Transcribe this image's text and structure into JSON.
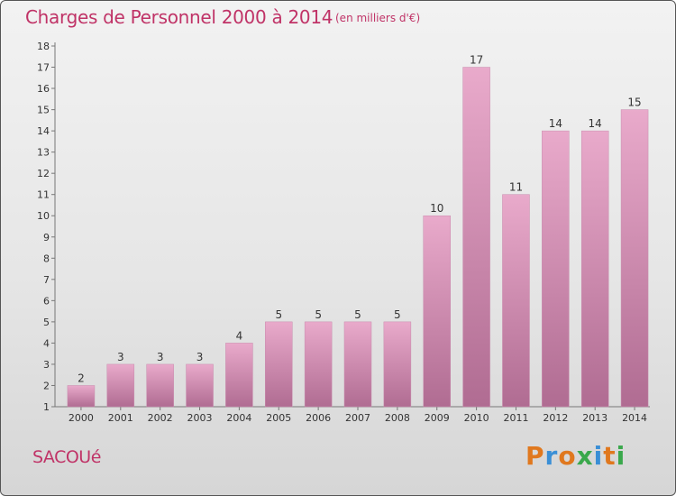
{
  "header": {
    "title": "Charges de Personnel 2000 à 2014",
    "subtitle": "(en milliers d'€)"
  },
  "footer": {
    "commune": "SACOUé",
    "brand": "Proxiti"
  },
  "colors": {
    "title": "#c03367",
    "bar_top": "#e9aacb",
    "bar_bottom": "#b06c92",
    "brand_letters": [
      "#e0781e",
      "#3a8fd6",
      "#e0781e",
      "#3aa84c",
      "#3a8fd6",
      "#e0781e",
      "#3aa84c"
    ]
  },
  "chart_data": {
    "type": "bar",
    "title": "Charges de Personnel 2000 à 2014",
    "subtitle": "(en milliers d'€)",
    "xlabel": "",
    "ylabel": "",
    "categories": [
      "2000",
      "2001",
      "2002",
      "2003",
      "2004",
      "2005",
      "2006",
      "2007",
      "2008",
      "2009",
      "2010",
      "2011",
      "2012",
      "2013",
      "2014"
    ],
    "values": [
      2,
      3,
      3,
      3,
      4,
      5,
      5,
      5,
      5,
      10,
      17,
      11,
      14,
      14,
      15
    ],
    "data_labels": [
      "2",
      "3",
      "3",
      "3",
      "4",
      "5",
      "5",
      "5",
      "5",
      "10",
      "17",
      "11",
      "14",
      "14",
      "15"
    ],
    "ylim": [
      1,
      18
    ],
    "yticks": [
      "1",
      "2",
      "3",
      "4",
      "5",
      "6",
      "7",
      "8",
      "9",
      "10",
      "11",
      "12",
      "13",
      "14",
      "15",
      "16",
      "17",
      "18"
    ],
    "grid": false,
    "legend": "none"
  }
}
